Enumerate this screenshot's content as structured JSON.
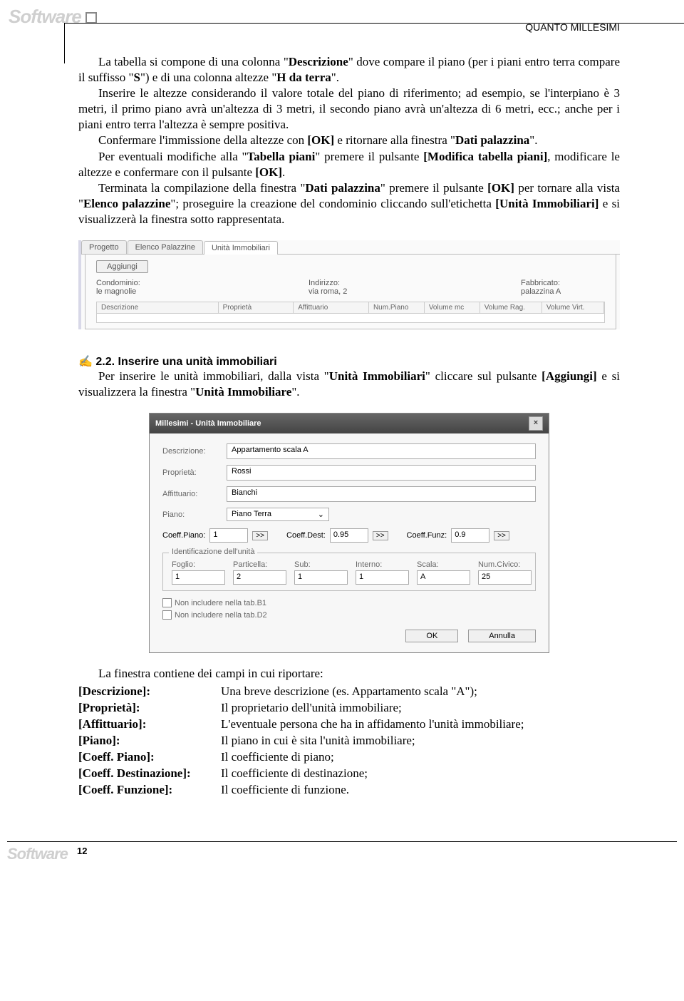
{
  "header_label": "Software",
  "section_title": "QUANTO MILLESIMI",
  "para1": "La tabella si compone di una colonna \"Descrizione\" dove compare il piano (per i piani entro terra compare il suffisso \"S\") e di una colonna altezze \"H da terra\".",
  "para2": "Inserire le altezze considerando il valore totale del piano di riferimento; ad esempio, se l'interpiano è 3 metri, il primo piano avrà un'altezza di 3 metri, il secondo piano avrà un'altezza di 6 metri, ecc.; anche per i piani entro terra l'altezza è sempre positiva.",
  "para3_a": "Confermare l'immissione della altezze con ",
  "para3_b": "[OK]",
  "para3_c": " e ritornare alla finestra \"",
  "para3_d": "Dati palazzina",
  "para3_e": "\".",
  "para4_a": "Per eventuali modifiche alla \"",
  "para4_b": "Tabella piani",
  "para4_c": "\" premere il pulsante ",
  "para4_d": "[Modifica tabella piani]",
  "para4_e": ", modificare le altezze e confermare con il pulsante ",
  "para4_f": "[OK]",
  "para4_g": ".",
  "para5_a": "Terminata la compilazione della finestra \"",
  "para5_b": "Dati palazzina",
  "para5_c": "\" premere il pulsante ",
  "para5_d": "[OK]",
  "para5_e": " per tornare alla vista \"",
  "para5_f": "Elenco palazzine",
  "para5_g": "\"; proseguire la creazione del condominio cliccando sull'etichetta ",
  "para5_h": "[Unità Immobiliari]",
  "para5_i": " e si visualizzerà la finestra sotto rappresentata.",
  "shot1": {
    "tabs": [
      "Progetto",
      "Elenco Palazzine",
      "Unità Immobiliari"
    ],
    "btn_add": "Aggiungi",
    "cond_label": "Condominio:",
    "cond_val": "le magnolie",
    "addr_label": "Indirizzo:",
    "addr_val": "via roma, 2",
    "fabb_label": "Fabbricato:",
    "fabb_val": "palazzina A",
    "cols": [
      "Descrizione",
      "Proprietà",
      "Affittuario",
      "Num.Piano",
      "Volume mc",
      "Volume Rag.",
      "Volume Virt."
    ],
    "widths": [
      170,
      100,
      100,
      70,
      70,
      80,
      80
    ]
  },
  "heading22": "2.2. Inserire una unità immobiliari",
  "sec22_a": "Per inserire le unità immobiliari, dalla vista \"",
  "sec22_b": "Unità Immobiliari",
  "sec22_c": "\" cliccare sul pulsante ",
  "sec22_d": "[Aggiungi]",
  "sec22_e": " e si visualizzera la finestra \"",
  "sec22_f": "Unità Immobiliare",
  "sec22_g": "\".",
  "shot2": {
    "title": "Millesimi - Unità Immobiliare",
    "desc_label": "Descrizione:",
    "desc_val": "Appartamento scala A",
    "prop_label": "Proprietà:",
    "prop_val": "Rossi",
    "aff_label": "Affittuario:",
    "aff_val": "Bianchi",
    "piano_label": "Piano:",
    "piano_val": "Piano Terra",
    "cp_label": "Coeff.Piano:",
    "cp_val": "1",
    "cd_label": "Coeff.Dest:",
    "cd_val": "0.95",
    "cf_label": "Coeff.Funz:",
    "cf_val": "0.9",
    "step": ">>",
    "legend": "Identificazione dell'unità",
    "foglio_l": "Foglio:",
    "foglio_v": "1",
    "part_l": "Particella:",
    "part_v": "2",
    "sub_l": "Sub:",
    "sub_v": "1",
    "int_l": "Interno:",
    "int_v": "1",
    "scala_l": "Scala:",
    "scala_v": "A",
    "civ_l": "Num.Civico:",
    "civ_v": "25",
    "chk1": "Non includere nella tab.B1",
    "chk2": "Non includere nella tab.D2",
    "ok": "OK",
    "annulla": "Annulla"
  },
  "para6": "La finestra contiene dei campi in cui riportare:",
  "fields": [
    {
      "l": "[Descrizione]:",
      "r": "Una breve descrizione (es. Appartamento scala \"A\");"
    },
    {
      "l": "[Proprietà]:",
      "r": "Il proprietario dell'unità immobiliare;"
    },
    {
      "l": "[Affittuario]:",
      "r": "L'eventuale persona che ha in affidamento l'unità immobiliare;"
    },
    {
      "l": "[Piano]:",
      "r": "Il piano in cui è sita l'unità immobiliare;"
    },
    {
      "l": "[Coeff. Piano]:",
      "r": "Il coefficiente di piano;"
    },
    {
      "l": "[Coeff. Destinazione]:",
      "r": "Il coefficiente di destinazione;"
    },
    {
      "l": "[Coeff. Funzione]:",
      "r": "Il coefficiente di funzione."
    }
  ],
  "footer_label": "Software",
  "page_num": "12"
}
